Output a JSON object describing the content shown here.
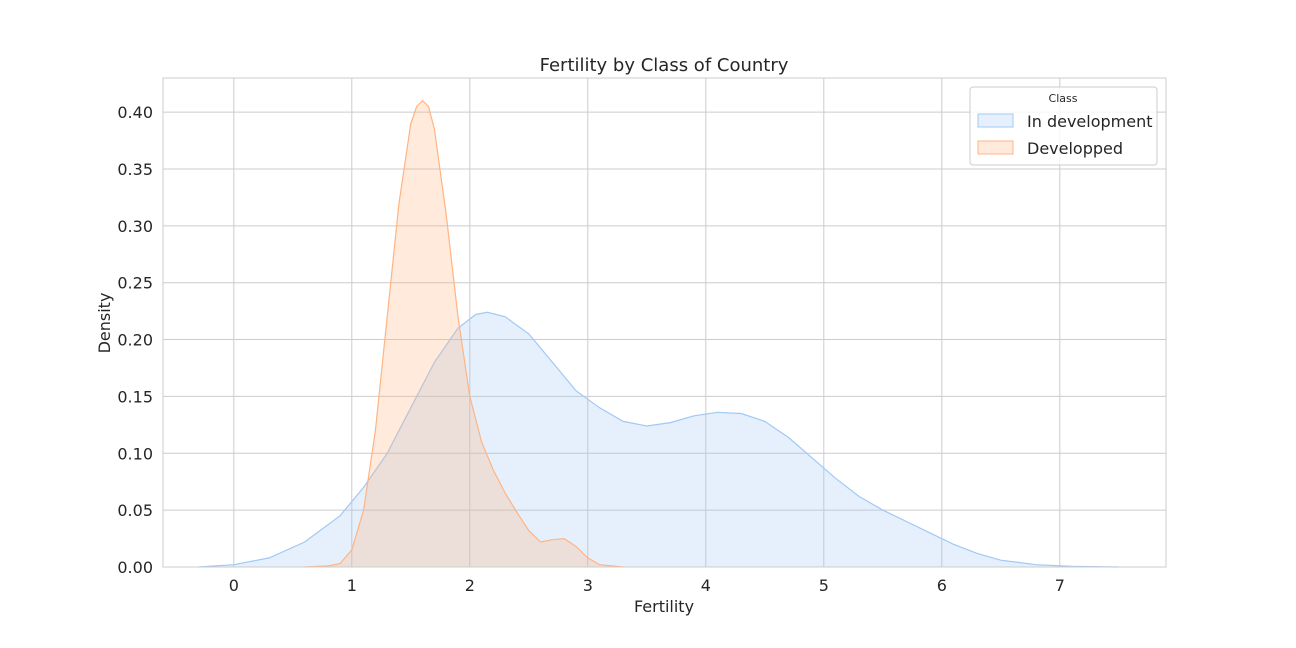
{
  "chart_data": {
    "type": "area",
    "title": "Fertility by Class of Country",
    "xlabel": "Fertility",
    "ylabel": "Density",
    "xlim": [
      -0.6,
      7.9
    ],
    "ylim": [
      0,
      0.43
    ],
    "x_ticks": [
      0,
      1,
      2,
      3,
      4,
      5,
      6,
      7
    ],
    "y_ticks": [
      0,
      0.05,
      0.1,
      0.15,
      0.2,
      0.25,
      0.3,
      0.35,
      0.4
    ],
    "x_tick_labels": [
      "0",
      "1",
      "2",
      "3",
      "4",
      "5",
      "6",
      "7"
    ],
    "y_tick_labels": [
      "0.00",
      "0.05",
      "0.10",
      "0.15",
      "0.20",
      "0.25",
      "0.30",
      "0.35",
      "0.40"
    ],
    "grid": true,
    "legend": {
      "title": "Class",
      "placement": "top-right"
    },
    "series": [
      {
        "name": "In development",
        "fill": "#a1c9f4",
        "stroke": "#a1c9f4",
        "points": [
          [
            -0.3,
            0.0
          ],
          [
            0.0,
            0.002
          ],
          [
            0.3,
            0.008
          ],
          [
            0.6,
            0.022
          ],
          [
            0.9,
            0.045
          ],
          [
            1.1,
            0.07
          ],
          [
            1.3,
            0.1
          ],
          [
            1.5,
            0.14
          ],
          [
            1.7,
            0.18
          ],
          [
            1.9,
            0.21
          ],
          [
            2.05,
            0.222
          ],
          [
            2.15,
            0.224
          ],
          [
            2.3,
            0.22
          ],
          [
            2.5,
            0.205
          ],
          [
            2.7,
            0.18
          ],
          [
            2.9,
            0.155
          ],
          [
            3.1,
            0.14
          ],
          [
            3.3,
            0.128
          ],
          [
            3.5,
            0.124
          ],
          [
            3.7,
            0.127
          ],
          [
            3.9,
            0.133
          ],
          [
            4.1,
            0.136
          ],
          [
            4.3,
            0.135
          ],
          [
            4.5,
            0.128
          ],
          [
            4.7,
            0.114
          ],
          [
            4.9,
            0.096
          ],
          [
            5.1,
            0.078
          ],
          [
            5.3,
            0.062
          ],
          [
            5.5,
            0.05
          ],
          [
            5.7,
            0.04
          ],
          [
            5.9,
            0.03
          ],
          [
            6.1,
            0.02
          ],
          [
            6.3,
            0.012
          ],
          [
            6.5,
            0.006
          ],
          [
            6.8,
            0.002
          ],
          [
            7.1,
            0.0005
          ],
          [
            7.5,
            0.0
          ]
        ]
      },
      {
        "name": "Developped",
        "fill": "#ffb482",
        "stroke": "#ffb482",
        "points": [
          [
            0.6,
            0.0
          ],
          [
            0.8,
            0.001
          ],
          [
            0.9,
            0.003
          ],
          [
            1.0,
            0.015
          ],
          [
            1.1,
            0.05
          ],
          [
            1.2,
            0.12
          ],
          [
            1.3,
            0.22
          ],
          [
            1.4,
            0.32
          ],
          [
            1.5,
            0.39
          ],
          [
            1.55,
            0.405
          ],
          [
            1.6,
            0.41
          ],
          [
            1.65,
            0.405
          ],
          [
            1.7,
            0.385
          ],
          [
            1.8,
            0.31
          ],
          [
            1.9,
            0.22
          ],
          [
            2.0,
            0.15
          ],
          [
            2.1,
            0.11
          ],
          [
            2.2,
            0.085
          ],
          [
            2.3,
            0.065
          ],
          [
            2.4,
            0.048
          ],
          [
            2.5,
            0.032
          ],
          [
            2.6,
            0.022
          ],
          [
            2.7,
            0.024
          ],
          [
            2.8,
            0.025
          ],
          [
            2.9,
            0.018
          ],
          [
            3.0,
            0.008
          ],
          [
            3.1,
            0.002
          ],
          [
            3.3,
            0.0
          ]
        ]
      }
    ]
  }
}
